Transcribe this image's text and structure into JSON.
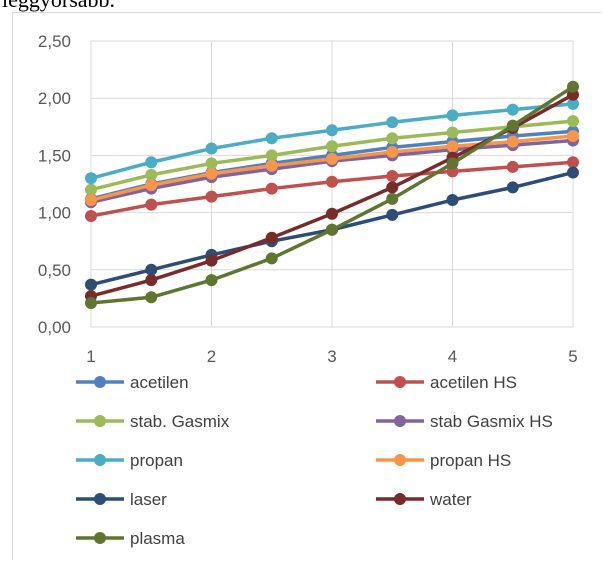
{
  "caption": "leggyorsabb.",
  "chart_data": {
    "type": "line",
    "x": [
      1,
      1.5,
      2,
      2.5,
      3,
      3.5,
      4,
      4.5,
      5
    ],
    "xticks": [
      "1",
      "2",
      "3",
      "4",
      "5"
    ],
    "xlim": [
      1,
      5
    ],
    "yticks": [
      "0,00",
      "0,50",
      "1,00",
      "1,50",
      "2,00",
      "2,50"
    ],
    "ylim": [
      0,
      2.5
    ],
    "grid": true,
    "legend_position": "bottom",
    "series": [
      {
        "name": "acetilen",
        "color": "#4f81bd",
        "values": [
          1.12,
          1.25,
          1.35,
          1.43,
          1.5,
          1.57,
          1.62,
          1.67,
          1.71
        ]
      },
      {
        "name": "acetilen HS",
        "color": "#c0504d",
        "values": [
          0.97,
          1.07,
          1.14,
          1.21,
          1.27,
          1.32,
          1.36,
          1.4,
          1.44
        ]
      },
      {
        "name": "stab. Gasmix",
        "color": "#9bbb59",
        "values": [
          1.2,
          1.33,
          1.43,
          1.5,
          1.58,
          1.65,
          1.7,
          1.75,
          1.8
        ]
      },
      {
        "name": "stab Gasmix HS",
        "color": "#8064a2",
        "values": [
          1.09,
          1.21,
          1.31,
          1.38,
          1.45,
          1.5,
          1.55,
          1.59,
          1.63
        ]
      },
      {
        "name": "propan",
        "color": "#4bacc6",
        "values": [
          1.3,
          1.44,
          1.56,
          1.65,
          1.72,
          1.79,
          1.85,
          1.9,
          1.95
        ]
      },
      {
        "name": "propan HS",
        "color": "#f79646",
        "values": [
          1.11,
          1.24,
          1.34,
          1.41,
          1.47,
          1.53,
          1.58,
          1.62,
          1.67
        ]
      },
      {
        "name": "laser",
        "color": "#2c4d75",
        "values": [
          0.37,
          0.5,
          0.63,
          0.75,
          0.85,
          0.98,
          1.11,
          1.22,
          1.35
        ]
      },
      {
        "name": "water",
        "color": "#772c2a",
        "values": [
          0.27,
          0.41,
          0.58,
          0.78,
          0.99,
          1.22,
          1.48,
          1.74,
          2.03
        ]
      },
      {
        "name": "plasma",
        "color": "#5f7530",
        "values": [
          0.21,
          0.26,
          0.41,
          0.6,
          0.85,
          1.12,
          1.43,
          1.76,
          2.1
        ]
      }
    ]
  }
}
